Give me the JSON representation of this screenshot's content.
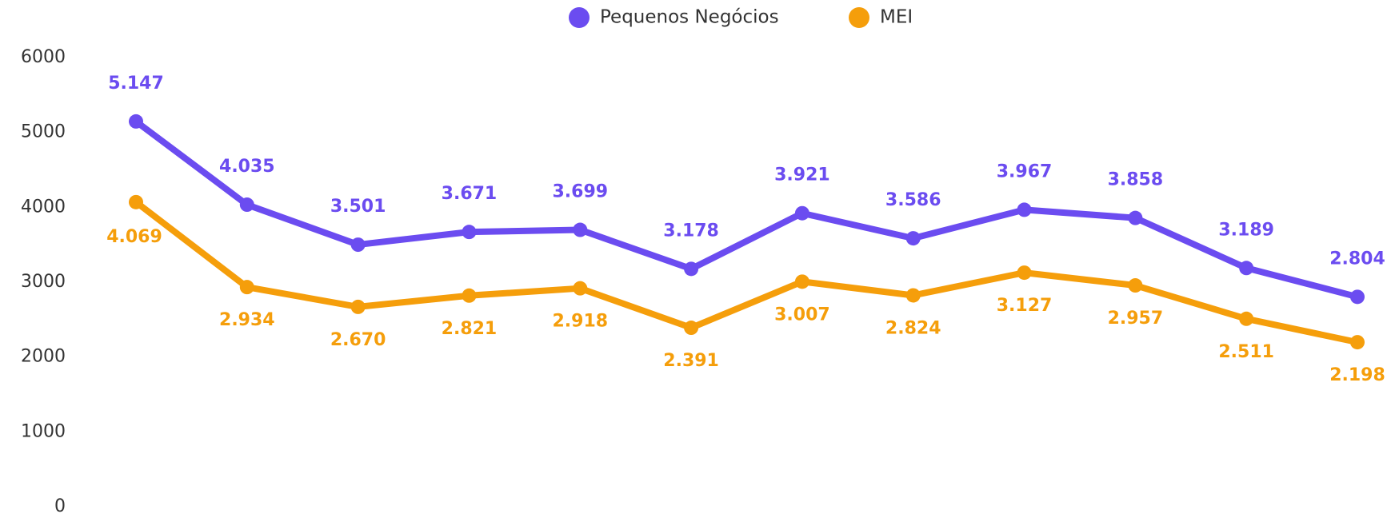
{
  "chart_data": {
    "type": "line",
    "categories": [
      null,
      null,
      null,
      null,
      null,
      null,
      null,
      null,
      null,
      null,
      null,
      null
    ],
    "series": [
      {
        "name": "Pequenos Negócios",
        "color": "#6b4cf0",
        "values": [
          5147,
          4035,
          3501,
          3671,
          3699,
          3178,
          3921,
          3586,
          3967,
          3858,
          3189,
          2804
        ],
        "value_labels": [
          "5.147",
          "4.035",
          "3.501",
          "3.671",
          "3.699",
          "3.178",
          "3.921",
          "3.586",
          "3.967",
          "3.858",
          "3.189",
          "2.804"
        ]
      },
      {
        "name": "MEI",
        "color": "#f59e0b",
        "values": [
          4069,
          2934,
          2670,
          2821,
          2918,
          2391,
          3007,
          2824,
          3127,
          2957,
          2511,
          2198
        ],
        "value_labels": [
          "4.069",
          "2.934",
          "2.670",
          "2.821",
          "2.918",
          "2.391",
          "3.007",
          "2.824",
          "3.127",
          "2.957",
          "2.511",
          "2.198"
        ]
      }
    ],
    "ylim": [
      0,
      6000
    ],
    "yticks": [
      0,
      1000,
      2000,
      3000,
      4000,
      5000,
      6000
    ],
    "legend": "top",
    "grid": false
  }
}
